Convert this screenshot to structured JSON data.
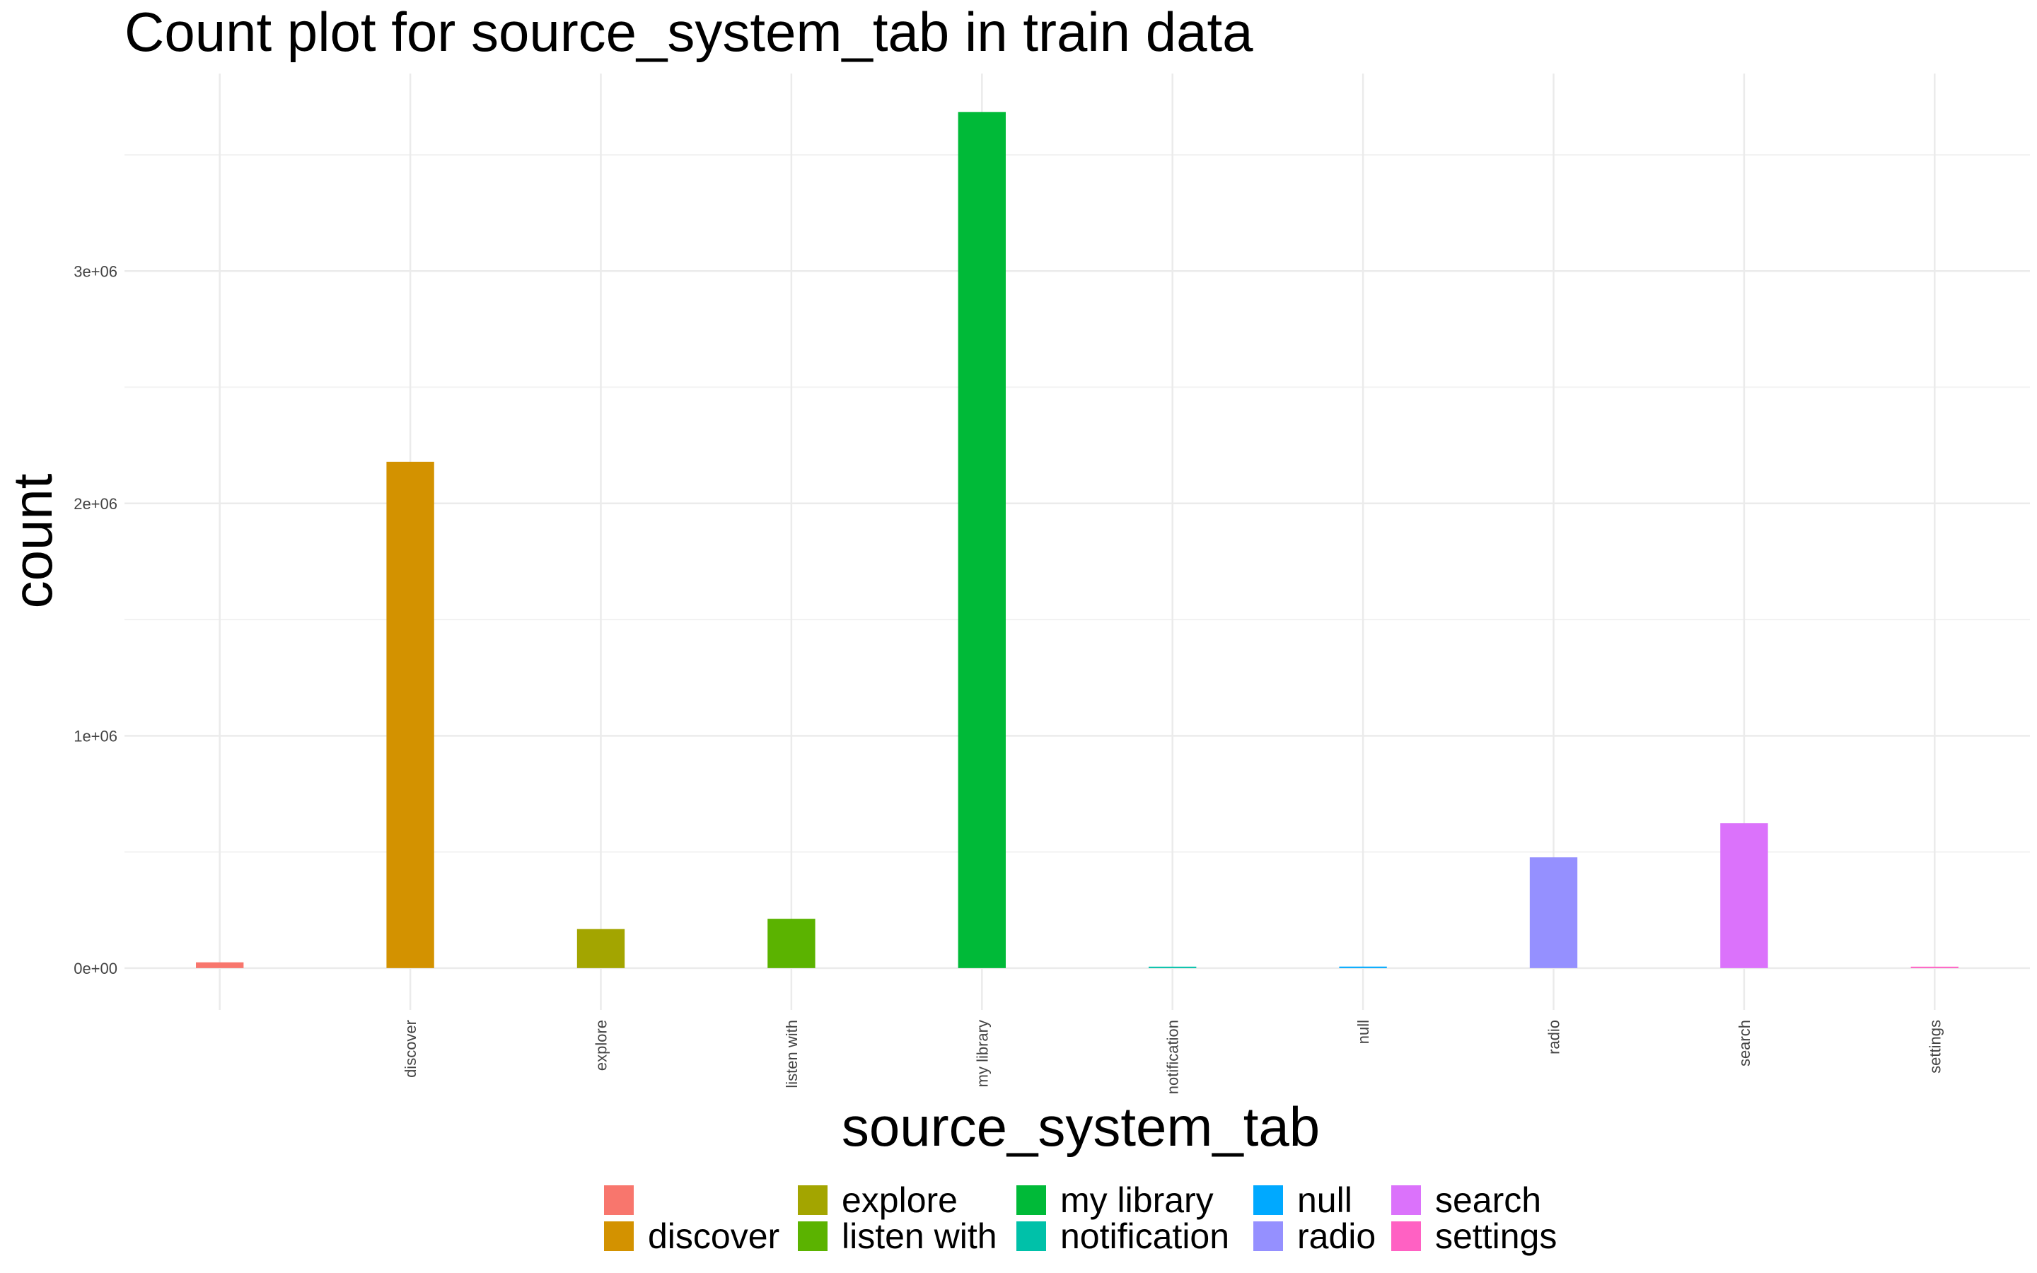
{
  "chart_data": {
    "type": "bar",
    "title": "Count plot for source_system_tab in train data",
    "xlabel": "source_system_tab",
    "ylabel": "count",
    "categories": [
      "",
      "discover",
      "explore",
      "listen with",
      "my library",
      "notification",
      "null",
      "radio",
      "search",
      "settings"
    ],
    "values": [
      24849,
      2179252,
      167949,
      212266,
      3684730,
      6185,
      6478,
      476701,
      623286,
      2200
    ],
    "colors": [
      "#F8766D",
      "#D39200",
      "#A3A500",
      "#5BB300",
      "#00BA38",
      "#00C1A9",
      "#00A9FF",
      "#9590FF",
      "#DB72FB",
      "#FF61C3"
    ],
    "ylim": [
      -180000,
      3850000
    ],
    "yticks": [
      0,
      1000000,
      2000000,
      3000000
    ],
    "ytick_labels": [
      "0e+00",
      "1e+06",
      "2e+06",
      "3e+06"
    ],
    "grid": true,
    "legend": {
      "placement": "bottom",
      "entries": [
        "",
        "discover",
        "explore",
        "listen with",
        "my library",
        "notification",
        "null",
        "radio",
        "search",
        "settings"
      ]
    }
  }
}
